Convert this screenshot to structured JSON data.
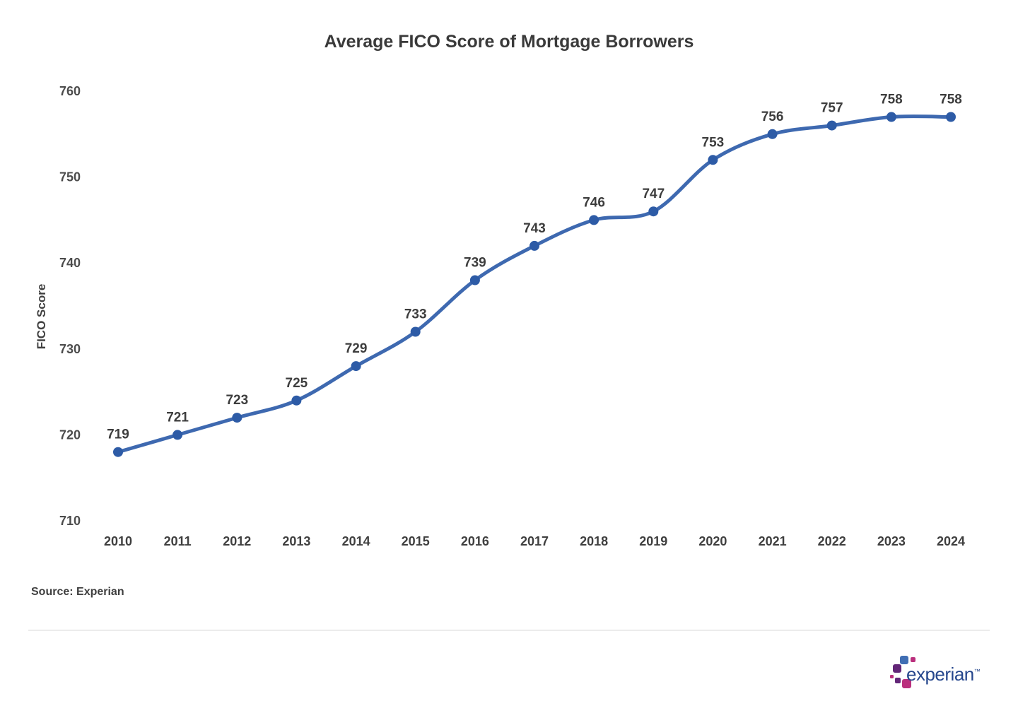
{
  "chart_data": {
    "type": "line",
    "title": "Average FICO Score of Mortgage Borrowers",
    "xlabel": "",
    "ylabel": "FICO Score",
    "x": [
      "2010",
      "2011",
      "2012",
      "2013",
      "2014",
      "2015",
      "2016",
      "2017",
      "2018",
      "2019",
      "2020",
      "2021",
      "2022",
      "2023",
      "2024"
    ],
    "series": [
      {
        "name": "Average FICO Score",
        "values": [
          719,
          721,
          723,
          725,
          729,
          733,
          739,
          743,
          746,
          747,
          753,
          756,
          757,
          758,
          758
        ],
        "plotted_values": [
          718,
          720,
          722,
          724,
          728,
          732,
          738,
          742,
          745,
          746,
          752,
          755,
          756,
          757,
          757
        ]
      }
    ],
    "y_ticks": [
      760,
      750,
      740,
      730,
      720,
      710
    ],
    "y_axis": {
      "min": 710,
      "max": 760
    },
    "grid": false,
    "legend": "none",
    "smooth_line": true,
    "colors": {
      "line": "#3e69b0",
      "marker": "#2d5ba6",
      "data_label": "#3d3d3d",
      "tick_label": "#4c4c4c",
      "year_label": "#3f3f3f"
    }
  },
  "source": {
    "text": "Source: Experian"
  },
  "logo": {
    "text": "experian",
    "trademark": "™",
    "colors": {
      "text": "#26478d",
      "blue": "#406eb3",
      "purple": "#632678",
      "magenta": "#ba2f7d"
    }
  }
}
